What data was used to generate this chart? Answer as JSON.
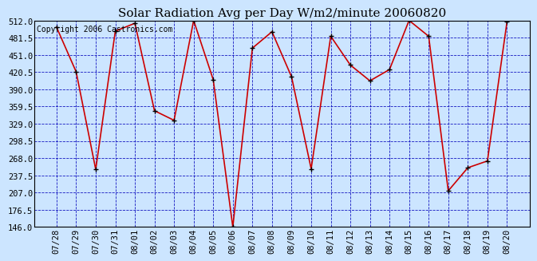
{
  "title": "Solar Radiation Avg per Day W/m2/minute 20060820",
  "copyright_text": "Copyright 2006 Castronics.com",
  "dates": [
    "07/28",
    "07/29",
    "07/30",
    "07/31",
    "08/01",
    "08/02",
    "08/03",
    "08/04",
    "08/05",
    "08/06",
    "08/07",
    "08/08",
    "08/09",
    "08/10",
    "08/11",
    "08/12",
    "08/13",
    "08/14",
    "08/15",
    "08/16",
    "08/17",
    "08/18",
    "08/19",
    "08/20"
  ],
  "values": [
    500,
    421,
    248,
    493,
    507,
    352,
    335,
    512,
    407,
    146,
    463,
    492,
    412,
    249,
    484,
    433,
    405,
    425,
    512,
    484,
    210,
    251,
    263,
    510
  ],
  "ylim": [
    146.0,
    512.0
  ],
  "yticks": [
    146.0,
    176.5,
    207.0,
    237.5,
    268.0,
    298.5,
    329.0,
    359.5,
    390.0,
    420.5,
    451.0,
    481.5,
    512.0
  ],
  "line_color": "#cc0000",
  "marker": "+",
  "marker_color": "#000000",
  "bg_color": "#cce5ff",
  "plot_bg_color": "#cce5ff",
  "grid_color": "#0000bb",
  "title_color": "#000000",
  "title_fontsize": 11,
  "copyright_fontsize": 7,
  "tick_label_color": "#000000",
  "tick_fontsize": 7.5,
  "ytick_fontsize": 7.5
}
